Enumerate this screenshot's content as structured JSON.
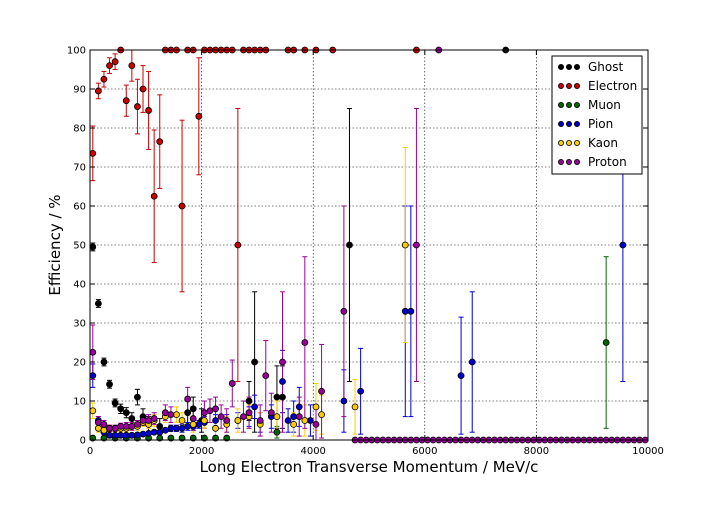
{
  "chart_data": {
    "type": "scatter",
    "xlabel": "Long Electron Transverse Momentum / MeV/c",
    "ylabel": "Efficiency / %",
    "xlim": [
      0,
      10000
    ],
    "ylim": [
      0,
      100
    ],
    "xticks": [
      0,
      2000,
      4000,
      6000,
      8000,
      10000
    ],
    "yticks": [
      0,
      10,
      20,
      30,
      40,
      50,
      60,
      70,
      80,
      90,
      100
    ],
    "grid": true,
    "legend_position": "top-right",
    "series": [
      {
        "name": "Ghost",
        "color": "#000000",
        "points": [
          [
            50,
            49.5,
            1
          ],
          [
            150,
            35,
            1
          ],
          [
            250,
            20,
            1
          ],
          [
            350,
            14.3,
            1
          ],
          [
            450,
            9.5,
            1
          ],
          [
            550,
            8,
            1.2
          ],
          [
            650,
            7,
            1.3
          ],
          [
            750,
            5.5,
            1.5
          ],
          [
            850,
            11,
            2
          ],
          [
            950,
            6,
            2
          ],
          [
            1050,
            4,
            2
          ],
          [
            1250,
            3.5,
            2
          ],
          [
            1750,
            7,
            3
          ],
          [
            1850,
            8,
            3
          ],
          [
            2000,
            5,
            3
          ],
          [
            2850,
            10,
            5
          ],
          [
            2950,
            20,
            18
          ],
          [
            3350,
            11,
            8
          ],
          [
            3450,
            11,
            8
          ],
          [
            4650,
            50,
            35
          ],
          [
            7450,
            100,
            0.5
          ]
        ]
      },
      {
        "name": "Electron",
        "color": "#cc0000",
        "points": [
          [
            50,
            73.5,
            7
          ],
          [
            150,
            89.5,
            2
          ],
          [
            250,
            92.5,
            2
          ],
          [
            350,
            96,
            2
          ],
          [
            450,
            97,
            2
          ],
          [
            550,
            100,
            0.5
          ],
          [
            650,
            87,
            4
          ],
          [
            750,
            96,
            4
          ],
          [
            850,
            85.5,
            7
          ],
          [
            950,
            90,
            6
          ],
          [
            1050,
            84.5,
            10
          ],
          [
            1150,
            62.5,
            17
          ],
          [
            1250,
            76.5,
            12
          ],
          [
            1350,
            100,
            0.5
          ],
          [
            1450,
            100,
            0.5
          ],
          [
            1550,
            100,
            0.5
          ],
          [
            1650,
            60,
            22
          ],
          [
            1750,
            100,
            0.5
          ],
          [
            1850,
            100,
            0.5
          ],
          [
            1950,
            83,
            15
          ],
          [
            2050,
            100,
            0.5
          ],
          [
            2150,
            100,
            0.5
          ],
          [
            2250,
            100,
            0.5
          ],
          [
            2350,
            100,
            0.5
          ],
          [
            2450,
            100,
            0.5
          ],
          [
            2550,
            100,
            0.5
          ],
          [
            2650,
            50,
            35
          ],
          [
            2750,
            100,
            0.5
          ],
          [
            2850,
            100,
            0.5
          ],
          [
            2950,
            100,
            0.5
          ],
          [
            3050,
            100,
            0.5
          ],
          [
            3150,
            100,
            0.5
          ],
          [
            3550,
            100,
            0.5
          ],
          [
            3650,
            100,
            0.5
          ],
          [
            3850,
            100,
            0.5
          ],
          [
            4050,
            100,
            0.5
          ],
          [
            4350,
            100,
            0.5
          ],
          [
            5850,
            100,
            0.5
          ]
        ]
      },
      {
        "name": "Muon",
        "color": "#006600",
        "points": [
          [
            50,
            0.5,
            0.3
          ],
          [
            250,
            0.5,
            0.3
          ],
          [
            450,
            0.5,
            0.3
          ],
          [
            650,
            0.5,
            0.3
          ],
          [
            850,
            0.5,
            0.3
          ],
          [
            1050,
            0.5,
            0.3
          ],
          [
            1250,
            0.5,
            0.3
          ],
          [
            1450,
            0.5,
            0.3
          ],
          [
            1650,
            0.5,
            0.3
          ],
          [
            1850,
            0.5,
            0.3
          ],
          [
            2050,
            0.5,
            0.3
          ],
          [
            2250,
            0.5,
            0.3
          ],
          [
            2450,
            0.5,
            0.3
          ],
          [
            3350,
            2,
            1.5
          ],
          [
            9250,
            25,
            22
          ]
        ]
      },
      {
        "name": "Pion",
        "color": "#0000cc",
        "points": [
          [
            50,
            16.5,
            3
          ],
          [
            150,
            5,
            1
          ],
          [
            250,
            2,
            0.5
          ],
          [
            350,
            1.2,
            0.3
          ],
          [
            450,
            1.2,
            0.3
          ],
          [
            550,
            1.2,
            0.3
          ],
          [
            650,
            1.2,
            0.3
          ],
          [
            750,
            1.2,
            0.3
          ],
          [
            850,
            1.3,
            0.3
          ],
          [
            950,
            1.5,
            0.4
          ],
          [
            1050,
            1.7,
            0.4
          ],
          [
            1150,
            2,
            0.5
          ],
          [
            1250,
            2,
            0.5
          ],
          [
            1350,
            2.5,
            0.6
          ],
          [
            1450,
            3,
            0.8
          ],
          [
            1550,
            3,
            0.8
          ],
          [
            1650,
            3,
            1
          ],
          [
            1750,
            3.5,
            1
          ],
          [
            1850,
            3.5,
            1
          ],
          [
            1950,
            4,
            1
          ],
          [
            2050,
            4.5,
            1.5
          ],
          [
            2250,
            5,
            1.5
          ],
          [
            2450,
            5,
            1.5
          ],
          [
            2650,
            5,
            2
          ],
          [
            2850,
            6,
            2.5
          ],
          [
            2950,
            8.5,
            3
          ],
          [
            3050,
            4.5,
            2.5
          ],
          [
            3250,
            6,
            3
          ],
          [
            3450,
            15,
            8
          ],
          [
            3550,
            5,
            3
          ],
          [
            3650,
            6,
            4
          ],
          [
            3750,
            8.5,
            5
          ],
          [
            3950,
            5,
            4
          ],
          [
            4550,
            10,
            8
          ],
          [
            4850,
            12.5,
            11
          ],
          [
            5650,
            33,
            27
          ],
          [
            5750,
            33,
            27
          ],
          [
            6650,
            16.5,
            15
          ],
          [
            6850,
            20,
            18
          ],
          [
            9550,
            50,
            35
          ]
        ]
      },
      {
        "name": "Kaon",
        "color": "#ffcc00",
        "points": [
          [
            50,
            7.5,
            2
          ],
          [
            150,
            3,
            1
          ],
          [
            250,
            2.5,
            0.8
          ],
          [
            350,
            3,
            0.8
          ],
          [
            450,
            3,
            0.8
          ],
          [
            550,
            3,
            0.8
          ],
          [
            650,
            3,
            1
          ],
          [
            750,
            3.5,
            1
          ],
          [
            850,
            3.5,
            1
          ],
          [
            950,
            4.5,
            1
          ],
          [
            1050,
            4,
            1
          ],
          [
            1150,
            5,
            1.5
          ],
          [
            1350,
            6,
            1.5
          ],
          [
            1550,
            6.5,
            2
          ],
          [
            1650,
            5,
            2
          ],
          [
            1850,
            4,
            2
          ],
          [
            2050,
            5,
            2
          ],
          [
            2250,
            3,
            2
          ],
          [
            2450,
            4,
            2
          ],
          [
            2650,
            5,
            3
          ],
          [
            2850,
            6,
            3
          ],
          [
            3050,
            4,
            3
          ],
          [
            3350,
            6,
            4
          ],
          [
            3650,
            4,
            3
          ],
          [
            3850,
            5,
            4
          ],
          [
            4050,
            8.5,
            6
          ],
          [
            4150,
            6.5,
            5
          ],
          [
            4750,
            8.5,
            7
          ],
          [
            5650,
            50,
            25
          ]
        ]
      },
      {
        "name": "Proton",
        "color": "#990099",
        "points": [
          [
            50,
            22.5,
            7
          ],
          [
            150,
            4.5,
            1.5
          ],
          [
            250,
            4,
            1
          ],
          [
            350,
            3,
            0.8
          ],
          [
            450,
            3,
            0.8
          ],
          [
            550,
            3.5,
            0.8
          ],
          [
            650,
            3.5,
            1
          ],
          [
            750,
            3.5,
            1
          ],
          [
            850,
            4,
            1
          ],
          [
            950,
            5,
            1.2
          ],
          [
            1050,
            5,
            1.5
          ],
          [
            1150,
            5.5,
            1.5
          ],
          [
            1350,
            7,
            2
          ],
          [
            1450,
            6.5,
            2
          ],
          [
            1750,
            10.5,
            3
          ],
          [
            1850,
            5.5,
            3
          ],
          [
            2050,
            7,
            3
          ],
          [
            2150,
            7.5,
            3
          ],
          [
            2250,
            8,
            3
          ],
          [
            2350,
            6,
            3
          ],
          [
            2450,
            5,
            3
          ],
          [
            2550,
            14.5,
            6
          ],
          [
            2750,
            6,
            4
          ],
          [
            2850,
            7,
            4
          ],
          [
            3050,
            5,
            4
          ],
          [
            3150,
            16.5,
            9
          ],
          [
            3250,
            7,
            5
          ],
          [
            3450,
            20,
            18
          ],
          [
            3750,
            6,
            5
          ],
          [
            3850,
            25,
            22
          ],
          [
            4050,
            4,
            4
          ],
          [
            4150,
            12.5,
            12
          ],
          [
            4550,
            33,
            27
          ],
          [
            5850,
            50,
            35
          ],
          [
            6250,
            100,
            0.5
          ]
        ]
      }
    ],
    "zero_series": {
      "color": "#990099",
      "x_start": 4750,
      "x_end": 10000,
      "step": 100,
      "value": 0
    }
  }
}
